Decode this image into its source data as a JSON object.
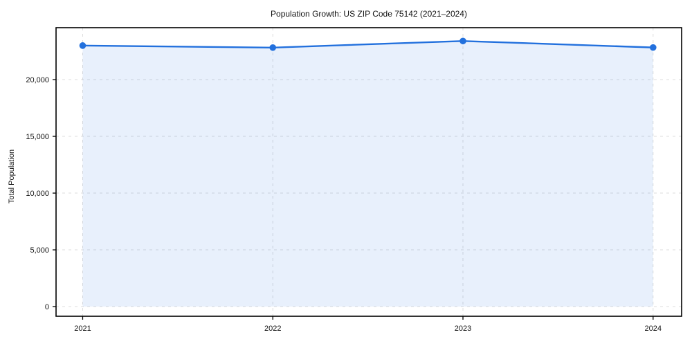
{
  "chart_data": {
    "type": "area",
    "title": "Population Growth: US ZIP Code 75142 (2021–2024)",
    "xlabel": "",
    "ylabel": "Total Population",
    "series_name": "Total Population",
    "x": [
      2021,
      2022,
      2023,
      2024
    ],
    "values": [
      23000,
      22820,
      23400,
      22830
    ],
    "xticks": [
      2021,
      2022,
      2023,
      2024
    ],
    "yticks": [
      0,
      5000,
      10000,
      15000,
      20000
    ],
    "xlim": [
      2020.86,
      2024.15
    ],
    "ylim": [
      -850,
      24575
    ],
    "fill_to": 0,
    "grid": true,
    "grid_style": "dashed",
    "legend": "none",
    "colors": {
      "line": "#2270dd",
      "marker": "#2270dd",
      "fill_opacity": 0.1,
      "grid": "#dcdcdc",
      "axis": "#000000",
      "background": "#ffffff",
      "text": "#111111"
    }
  }
}
